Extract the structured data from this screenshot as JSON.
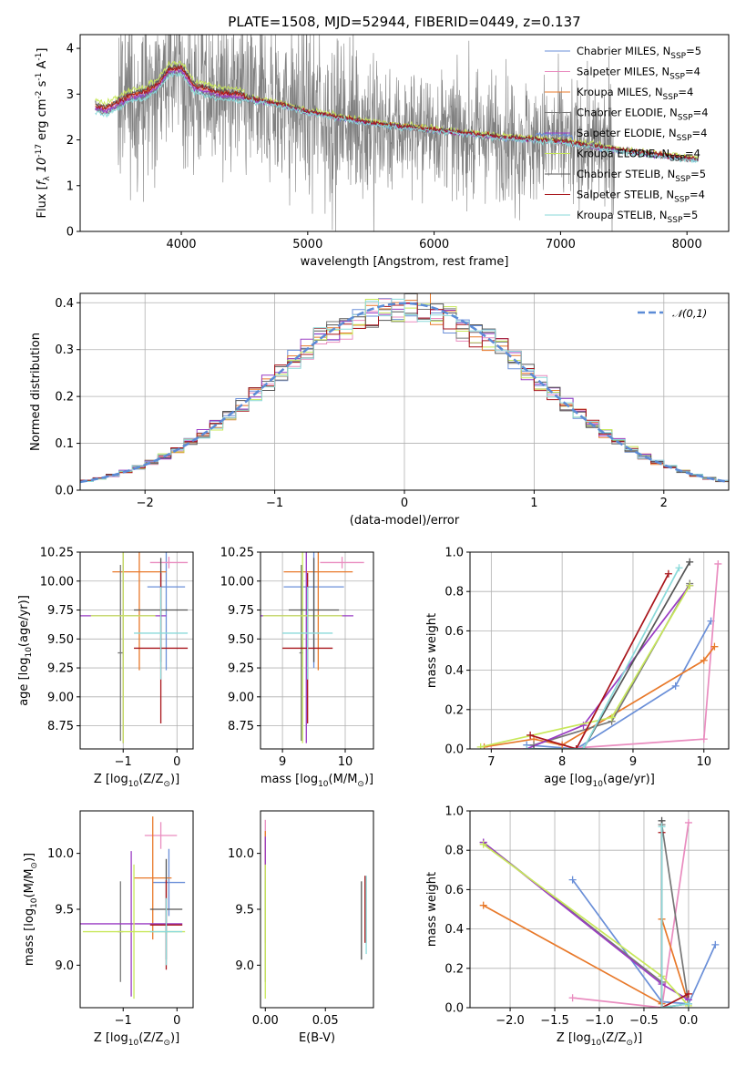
{
  "series_styles": [
    {
      "label": "Chabrier MILES, N$_{SSP}$=5",
      "color": "#6a8fd8"
    },
    {
      "label": "Salpeter MILES, N$_{SSP}$=4",
      "color": "#e98cbf"
    },
    {
      "label": "Kroupa MILES, N$_{SSP}$=4",
      "color": "#e8792a"
    },
    {
      "label": "Chabrier ELODIE, N$_{SSP}$=4",
      "color": "#777777"
    },
    {
      "label": "Salpeter ELODIE, N$_{SSP}$=4",
      "color": "#9a3cc4"
    },
    {
      "label": "Kroupa ELODIE, N$_{SSP}$=4",
      "color": "#c8e85a"
    },
    {
      "label": "Chabrier STELIB, N$_{SSP}$=5",
      "color": "#555555"
    },
    {
      "label": "Salpeter STELIB, N$_{SSP}$=4",
      "color": "#a8141a"
    },
    {
      "label": "Kroupa STELIB, N$_{SSP}$=5",
      "color": "#8adada"
    }
  ],
  "chart_data": [
    {
      "id": "spectrum",
      "type": "line",
      "title": "PLATE=1508, MJD=52944, FIBERID=0449, z=0.137",
      "xlabel": "wavelength [Angstrom, rest frame]",
      "ylabel": "Flux [$f_\\lambda 10^{-17}$ erg cm$^{-2}$ s$^{-1}$ A$^{-1}$]",
      "xlim": [
        3200,
        8330
      ],
      "ylim": [
        0,
        4.3
      ],
      "xticks": [
        4000,
        5000,
        6000,
        7000,
        8000
      ],
      "yticks": [
        0,
        1,
        2,
        3,
        4
      ],
      "grid": false,
      "legend": "top-right",
      "data": {
        "x_start": 3320,
        "x_end": 8090,
        "continuum": [
          [
            3320,
            2.68
          ],
          [
            3400,
            2.6
          ],
          [
            3500,
            2.75
          ],
          [
            3600,
            2.9
          ],
          [
            3700,
            2.95
          ],
          [
            3800,
            3.1
          ],
          [
            3900,
            3.45
          ],
          [
            4000,
            3.5
          ],
          [
            4100,
            3.1
          ],
          [
            4300,
            2.95
          ],
          [
            4500,
            2.9
          ],
          [
            4800,
            2.75
          ],
          [
            5000,
            2.6
          ],
          [
            5200,
            2.5
          ],
          [
            5500,
            2.35
          ],
          [
            6000,
            2.2
          ],
          [
            6500,
            2.05
          ],
          [
            7000,
            1.95
          ],
          [
            7500,
            1.75
          ],
          [
            8090,
            1.55
          ]
        ],
        "model_offsets": [
          0.0,
          0.05,
          0.1,
          -0.02,
          0.02,
          0.2,
          0.12,
          0.08,
          -0.06
        ],
        "noise_scale": 1.2
      }
    },
    {
      "id": "residuals",
      "type": "line",
      "xlabel": "(data-model)/error",
      "ylabel": "Normed distribution",
      "xlim": [
        -2.5,
        2.5
      ],
      "ylim": [
        0,
        0.42
      ],
      "xticks": [
        -2,
        -1,
        0,
        1,
        2
      ],
      "yticks": [
        0.0,
        0.1,
        0.2,
        0.3,
        0.4
      ],
      "grid": true,
      "legend": "top-right",
      "legend_label": "$\\mathcal{N}(0,1)$",
      "data": {
        "bin_width": 0.1,
        "normal_mu": 0,
        "normal_sigma": 1
      }
    },
    {
      "id": "age_vs_Z",
      "type": "scatter",
      "xlabel": "Z [log$_{10}$(Z/Z$_\\odot$)]",
      "ylabel": "age  [log$_{10}$(age/yr)]",
      "xlim": [
        -1.8,
        0.3
      ],
      "ylim": [
        8.55,
        10.25
      ],
      "xticks": [
        -1,
        0
      ],
      "yticks": [
        8.75,
        9.0,
        9.25,
        9.5,
        9.75,
        10.0,
        10.25
      ],
      "grid": true,
      "points": [
        {
          "x": -0.2,
          "xerr": 0.35,
          "y": 9.95,
          "yerr": 0.72
        },
        {
          "x": -0.15,
          "xerr": 0.35,
          "y": 10.16,
          "yerr": 0.05
        },
        {
          "x": -0.7,
          "xerr": 0.5,
          "y": 10.08,
          "yerr": 0.85
        },
        {
          "x": -1.05,
          "xerr": 0.05,
          "y": 9.38,
          "yerr": 0.76
        },
        {
          "x": -1.0,
          "xerr": 0.8,
          "y": 9.7,
          "yerr": 1.1
        },
        {
          "x": -1.0,
          "xerr": 0.6,
          "y": 9.7,
          "yerr": 1.1
        },
        {
          "x": -0.3,
          "xerr": 0.5,
          "y": 9.75,
          "yerr": 0.45
        },
        {
          "x": -0.3,
          "xerr": 0.5,
          "y": 9.42,
          "yerr": 0.65
        },
        {
          "x": -0.3,
          "xerr": 0.5,
          "y": 9.55,
          "yerr": 0.4
        }
      ]
    },
    {
      "id": "age_vs_mass",
      "type": "scatter",
      "xlabel": "mass [log$_{10}$(M/M$_\\odot$)]",
      "ylabel": "",
      "xlim": [
        8.65,
        10.45
      ],
      "ylim": [
        8.55,
        10.25
      ],
      "xticks": [
        9,
        10
      ],
      "yticks": [
        8.75,
        9.0,
        9.25,
        9.5,
        9.75,
        10.0,
        10.25
      ],
      "grid": true,
      "points": [
        {
          "x": 9.5,
          "xerr": 0.48,
          "y": 9.95,
          "yerr": 0.7
        },
        {
          "x": 9.95,
          "xerr": 0.35,
          "y": 10.16,
          "yerr": 0.05
        },
        {
          "x": 9.57,
          "xerr": 0.55,
          "y": 10.08,
          "yerr": 0.85
        },
        {
          "x": 9.3,
          "xerr": 0.03,
          "y": 9.38,
          "yerr": 0.76
        },
        {
          "x": 9.38,
          "xerr": 0.75,
          "y": 9.7,
          "yerr": 1.1
        },
        {
          "x": 9.32,
          "xerr": 0.63,
          "y": 9.7,
          "yerr": 1.1
        },
        {
          "x": 9.5,
          "xerr": 0.4,
          "y": 9.75,
          "yerr": 0.45
        },
        {
          "x": 9.4,
          "xerr": 0.4,
          "y": 9.42,
          "yerr": 0.65
        },
        {
          "x": 9.4,
          "xerr": 0.4,
          "y": 9.55,
          "yerr": 0.4
        }
      ]
    },
    {
      "id": "mass_weight_vs_age",
      "type": "line",
      "xlabel": "age  [log$_{10}$(age/yr)]",
      "ylabel": "mass weight",
      "xlim": [
        6.7,
        10.35
      ],
      "ylim": [
        0,
        1.0
      ],
      "xticks": [
        7,
        8,
        9,
        10
      ],
      "yticks": [
        0.0,
        0.2,
        0.4,
        0.6,
        0.8,
        1.0
      ],
      "grid": true,
      "series": [
        {
          "x": [
            7.5,
            8.2,
            9.6,
            10.1
          ],
          "y": [
            0.02,
            0.0,
            0.32,
            0.65
          ]
        },
        {
          "x": [
            7.0,
            8.0,
            10.0,
            10.2
          ],
          "y": [
            0.0,
            0.0,
            0.05,
            0.94
          ]
        },
        {
          "x": [
            6.9,
            7.6,
            8.0,
            10.0,
            10.15
          ],
          "y": [
            0.01,
            0.05,
            0.02,
            0.45,
            0.52
          ]
        },
        {
          "x": [
            7.6,
            8.7,
            9.8
          ],
          "y": [
            0.02,
            0.14,
            0.84
          ]
        },
        {
          "x": [
            7.5,
            8.3,
            9.8
          ],
          "y": [
            0.0,
            0.12,
            0.83
          ]
        },
        {
          "x": [
            6.85,
            8.7,
            9.8
          ],
          "y": [
            0.01,
            0.16,
            0.83
          ]
        },
        {
          "x": [
            7.6,
            8.3,
            9.8
          ],
          "y": [
            0.0,
            0.0,
            0.95
          ]
        },
        {
          "x": [
            7.55,
            8.2,
            9.5
          ],
          "y": [
            0.07,
            0.0,
            0.89
          ]
        },
        {
          "x": [
            7.5,
            8.3,
            9.65
          ],
          "y": [
            0.0,
            0.0,
            0.92
          ]
        }
      ]
    },
    {
      "id": "mass_vs_Z",
      "type": "scatter",
      "xlabel": "Z [log$_{10}$(Z/Z$_\\odot$)]",
      "ylabel": "mass [log$_{10}$(M/M$_\\odot$)]",
      "xlim": [
        -1.8,
        0.3
      ],
      "ylim": [
        8.62,
        10.38
      ],
      "xticks": [
        -1,
        0
      ],
      "yticks": [
        9.0,
        9.5,
        10.0
      ],
      "grid": false,
      "points": [
        {
          "x": -0.15,
          "xerr": 0.3,
          "y": 9.74,
          "yerr": 0.3
        },
        {
          "x": -0.3,
          "xerr": 0.3,
          "y": 10.16,
          "yerr": 0.12
        },
        {
          "x": -0.45,
          "xerr": 0.35,
          "y": 9.78,
          "yerr": 0.55
        },
        {
          "x": -1.05,
          "xerr": 0.05,
          "y": 9.3,
          "yerr": 0.45
        },
        {
          "x": -0.85,
          "xerr": 0.95,
          "y": 9.37,
          "yerr": 0.65
        },
        {
          "x": -0.8,
          "xerr": 0.95,
          "y": 9.3,
          "yerr": 0.6
        },
        {
          "x": -0.2,
          "xerr": 0.3,
          "y": 9.5,
          "yerr": 0.45
        },
        {
          "x": -0.2,
          "xerr": 0.3,
          "y": 9.36,
          "yerr": 0.4
        },
        {
          "x": -0.2,
          "xerr": 0.3,
          "y": 9.3,
          "yerr": 0.3
        }
      ]
    },
    {
      "id": "mass_vs_EBV",
      "type": "scatter",
      "xlabel": "E(B-V)",
      "ylabel": "",
      "xlim": [
        -0.004,
        0.09
      ],
      "ylim": [
        8.62,
        10.38
      ],
      "xticks": [
        0.0,
        0.05
      ],
      "yticks": [
        9.0,
        9.5,
        10.0
      ],
      "grid": false,
      "points": [
        {
          "x": 0.0,
          "xerr": 0,
          "y": 9.75,
          "yerr": 0.3
        },
        {
          "x": 0.0,
          "xerr": 0,
          "y": 10.05,
          "yerr": 0.25
        },
        {
          "x": 0.0,
          "xerr": 0,
          "y": 9.7,
          "yerr": 0.5
        },
        {
          "x": 0.0,
          "xerr": 0,
          "y": 9.3,
          "yerr": 0.45
        },
        {
          "x": 0.0,
          "xerr": 0,
          "y": 9.95,
          "yerr": 0.2
        },
        {
          "x": 0.0,
          "xerr": 0,
          "y": 9.3,
          "yerr": 0.6
        },
        {
          "x": 0.08,
          "xerr": 0,
          "y": 9.4,
          "yerr": 0.35
        },
        {
          "x": 0.083,
          "xerr": 0,
          "y": 9.5,
          "yerr": 0.3
        },
        {
          "x": 0.084,
          "xerr": 0,
          "y": 9.45,
          "yerr": 0.35
        }
      ]
    },
    {
      "id": "mass_weight_vs_Z",
      "type": "line",
      "xlabel": "Z [log$_{10}$(Z/Z$_\\odot$)]",
      "ylabel": "mass weight",
      "xlim": [
        -2.45,
        0.45
      ],
      "ylim": [
        0,
        1.0
      ],
      "xticks": [
        -2.0,
        -1.5,
        -1.0,
        -0.5,
        0.0
      ],
      "yticks": [
        0.0,
        0.2,
        0.4,
        0.6,
        0.8,
        1.0
      ],
      "grid": true,
      "series": [
        {
          "x": [
            -1.3,
            -0.3,
            0.0,
            0.3
          ],
          "y": [
            0.65,
            0.03,
            0.02,
            0.32
          ]
        },
        {
          "x": [
            -1.3,
            -0.3,
            0.0
          ],
          "y": [
            0.05,
            0.0,
            0.94
          ]
        },
        {
          "x": [
            -2.3,
            -0.3,
            -0.3,
            0.0
          ],
          "y": [
            0.52,
            0.02,
            0.45,
            0.02
          ]
        },
        {
          "x": [
            -2.3,
            -0.3,
            -0.3,
            0.0
          ],
          "y": [
            0.84,
            0.13,
            0.93,
            0.02
          ]
        },
        {
          "x": [
            -2.3,
            -0.3,
            0.0
          ],
          "y": [
            0.84,
            0.12,
            0.04
          ]
        },
        {
          "x": [
            -2.3,
            -0.3,
            0.0
          ],
          "y": [
            0.83,
            0.16,
            0.01
          ]
        },
        {
          "x": [
            -0.3,
            -0.3,
            0.0
          ],
          "y": [
            0.95,
            0.0,
            0.02
          ]
        },
        {
          "x": [
            -0.3,
            -0.3,
            0.0
          ],
          "y": [
            0.89,
            0.0,
            0.07
          ]
        },
        {
          "x": [
            -0.3,
            -0.3,
            0.0
          ],
          "y": [
            0.92,
            0.0,
            0.02
          ]
        }
      ]
    }
  ]
}
